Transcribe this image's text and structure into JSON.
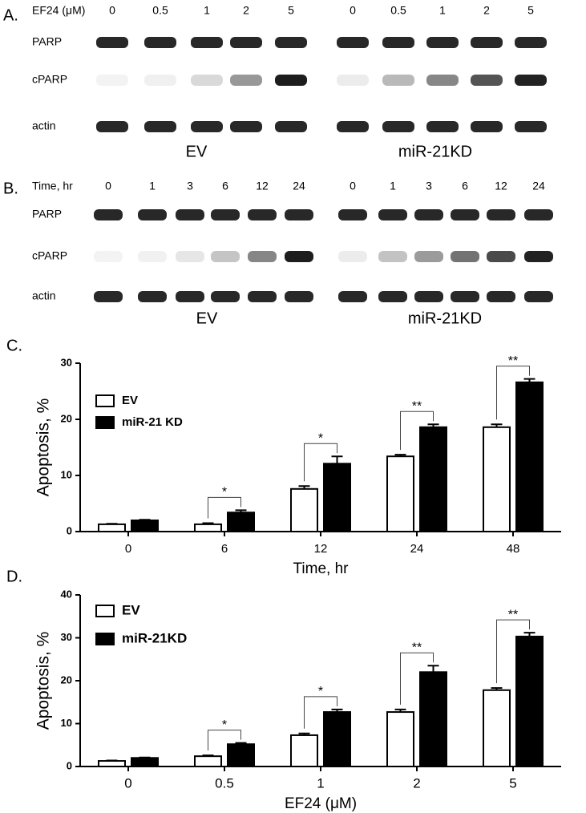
{
  "panels": [
    {
      "label": "A.",
      "header": "EF24 (μM)",
      "rows": [
        "PARP",
        "cPARP",
        "actin"
      ],
      "groups": [
        {
          "name": "EV",
          "lanes": [
            "0",
            "0.5",
            "1",
            "2",
            "5"
          ]
        },
        {
          "name": "miR-21KD",
          "lanes": [
            "0",
            "0.5",
            "1",
            "2",
            "5"
          ]
        }
      ]
    },
    {
      "label": "B.",
      "header": "Time, hr",
      "rows": [
        "PARP",
        "cPARP",
        "actin"
      ],
      "groups": [
        {
          "name": "EV",
          "lanes": [
            "0",
            "1",
            "3",
            "6",
            "12",
            "24"
          ]
        },
        {
          "name": "miR-21KD",
          "lanes": [
            "0",
            "1",
            "3",
            "6",
            "12",
            "24"
          ]
        }
      ]
    }
  ],
  "chart_data": [
    {
      "type": "bar",
      "panel_label": "C.",
      "x_label": "Time, hr",
      "y_label": "Apoptosis, %",
      "categories": [
        "0",
        "6",
        "12",
        "24",
        "48"
      ],
      "ylim": [
        0,
        30
      ],
      "yticks": [
        0,
        10,
        20,
        30
      ],
      "legend": "upper left",
      "series": [
        {
          "name": "EV",
          "color": "#ffffff",
          "values": [
            1.3,
            1.3,
            7.6,
            13.4,
            18.6
          ],
          "errors": [
            0.1,
            0.2,
            0.5,
            0.3,
            0.5
          ]
        },
        {
          "name": "miR-21 KD",
          "color": "#000000",
          "values": [
            2.0,
            3.4,
            12.1,
            18.6,
            26.6
          ],
          "errors": [
            0.1,
            0.4,
            1.3,
            0.5,
            0.6
          ]
        }
      ],
      "significance": [
        null,
        "*",
        "*",
        "**",
        "**"
      ]
    },
    {
      "type": "bar",
      "panel_label": "D.",
      "x_label": "EF24 (μM)",
      "y_label": "Apoptosis, %",
      "categories": [
        "0",
        "0.5",
        "1",
        "2",
        "5"
      ],
      "ylim": [
        0,
        40
      ],
      "yticks": [
        0,
        10,
        20,
        30,
        40
      ],
      "legend": "upper left",
      "series": [
        {
          "name": "EV",
          "color": "#ffffff",
          "values": [
            1.3,
            2.4,
            7.3,
            12.7,
            17.8
          ],
          "errors": [
            0.1,
            0.2,
            0.4,
            0.6,
            0.5
          ]
        },
        {
          "name": "miR-21KD",
          "color": "#000000",
          "values": [
            2.0,
            5.2,
            12.7,
            22.0,
            30.3
          ],
          "errors": [
            0.1,
            0.3,
            0.6,
            1.5,
            0.9
          ]
        }
      ],
      "significance": [
        null,
        "*",
        "*",
        "**",
        "**"
      ]
    }
  ]
}
